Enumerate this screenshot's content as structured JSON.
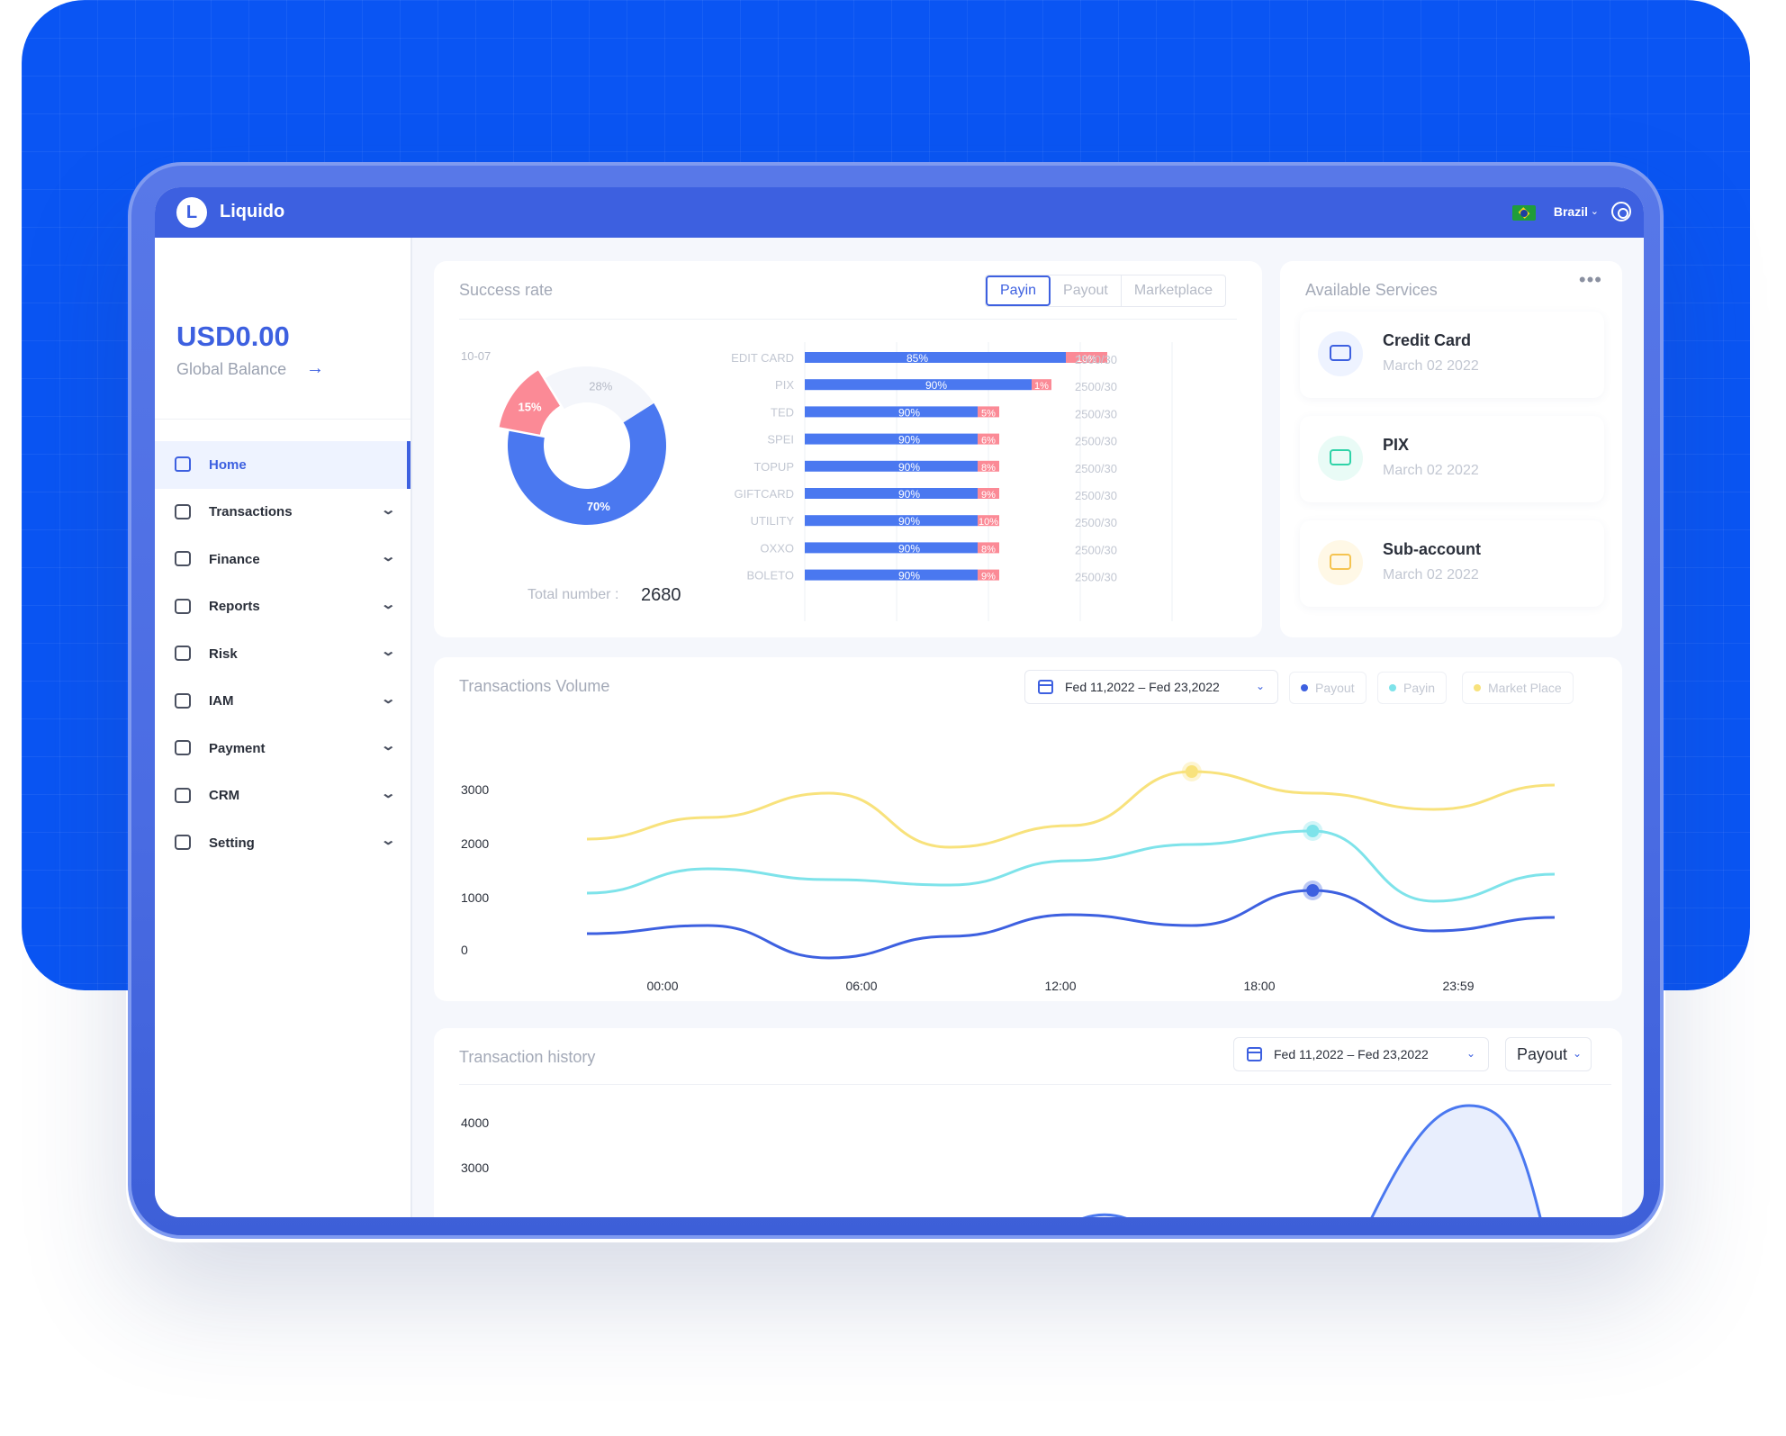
{
  "app": {
    "logo_letter": "L",
    "name": "Liquido"
  },
  "topbar": {
    "country": "Brazil",
    "flag_icon": "brazil-flag-icon",
    "settings_icon": "gear-icon"
  },
  "sidebar": {
    "balance": "USD0.00",
    "balance_label": "Global Balance",
    "balance_arrow": "→",
    "items": [
      {
        "label": "Home",
        "icon": "home-icon",
        "active": true
      },
      {
        "label": "Transactions",
        "icon": "transactions-icon"
      },
      {
        "label": "Finance",
        "icon": "finance-icon"
      },
      {
        "label": "Reports",
        "icon": "reports-icon"
      },
      {
        "label": "Risk",
        "icon": "shield-icon"
      },
      {
        "label": "IAM",
        "icon": "users-icon"
      },
      {
        "label": "Payment",
        "icon": "payment-icon"
      },
      {
        "label": "CRM",
        "icon": "crm-icon"
      },
      {
        "label": "Setting",
        "icon": "setting-icon"
      }
    ],
    "chevron": "⌄"
  },
  "success_rate": {
    "title": "Success rate",
    "tabs": [
      "Payin",
      "Payout",
      "Marketplace"
    ],
    "active_tab": "Payin",
    "date": "10-07",
    "total_label": "Total number  :",
    "total_value": "2680"
  },
  "services": {
    "title": "Available Services",
    "more": "•••",
    "items": [
      {
        "name": "Credit Card",
        "date": "March 02  2022",
        "icon": "credit-card-icon",
        "color": "#3d60e0",
        "bg": "#eef3ff"
      },
      {
        "name": "PIX",
        "date": "March 02  2022",
        "icon": "wallet-icon",
        "color": "#2fd3a8",
        "bg": "#e9fbf6"
      },
      {
        "name": "Sub-account",
        "date": "March 02  2022",
        "icon": "sub-account-icon",
        "color": "#f5c451",
        "bg": "#fff8e6"
      }
    ]
  },
  "volume": {
    "title": "Transactions Volume",
    "date_range": "Fed 11,2022 – Fed 23,2022",
    "chevron": "⌄",
    "legend": [
      {
        "name": "Payout",
        "color": "#3d60e0"
      },
      {
        "name": "Payin",
        "color": "#7ee3ea"
      },
      {
        "name": "Market Place",
        "color": "#f8e27c"
      }
    ]
  },
  "history": {
    "title": "Transaction history",
    "date_range": "Fed 11,2022 – Fed 23,2022",
    "chevron": "⌄",
    "type_select": "Payout"
  },
  "chart_data": [
    {
      "type": "pie",
      "donut": true,
      "slices": [
        {
          "label": "70%",
          "value": 70,
          "color": "#4a78f0"
        },
        {
          "label": "15%",
          "value": 15,
          "color": "#fb8a96"
        },
        {
          "label": "28%",
          "value": 28,
          "color": "#f4f6fb"
        }
      ]
    },
    {
      "type": "bar",
      "stacked": true,
      "orientation": "horizontal",
      "categories": [
        "CREDIT CARD",
        "PIX",
        "TED",
        "SPEI",
        "TOPUP",
        "GIFTCARD",
        "UTILITY",
        "OXXO",
        "BOLETO"
      ],
      "series": [
        {
          "values": [
            85,
            90,
            90,
            90,
            90,
            90,
            90,
            90,
            90
          ],
          "labels": [
            "85%",
            "90%",
            "90%",
            "90%",
            "90%",
            "90%",
            "90%",
            "90%",
            "90%"
          ],
          "color": "#4a78f0"
        },
        {
          "values": [
            10,
            1,
            5,
            6,
            8,
            9,
            10,
            8,
            9
          ],
          "labels": [
            "10%",
            "1%",
            "5%",
            "6%",
            "8%",
            "9%",
            "10%",
            "8%",
            "9%"
          ],
          "color": "#fb8a96"
        }
      ],
      "right_labels": [
        "2500/30",
        "2500/30",
        "2500/30",
        "2500/30",
        "2500/30",
        "2500/30",
        "2500/30",
        "2500/30",
        "2500/30"
      ]
    },
    {
      "type": "line",
      "x_ticks": [
        "00:00",
        "06:00",
        "12:00",
        "18:00",
        "23:59"
      ],
      "y_ticks": [
        "3000",
        "2000",
        "1000",
        "0"
      ],
      "ylim": [
        0,
        3000
      ],
      "x": [
        0,
        1,
        2,
        3,
        4,
        5,
        6,
        7,
        8
      ],
      "series": [
        {
          "name": "Market Place",
          "color": "#f8e27c",
          "values": [
            2100,
            2500,
            2950,
            1950,
            2350,
            3350,
            2950,
            2650,
            3100
          ],
          "highlight_index": 5
        },
        {
          "name": "Payin",
          "color": "#7ee3ea",
          "values": [
            1100,
            1550,
            1350,
            1250,
            1700,
            2000,
            2250,
            950,
            1450
          ],
          "highlight_index": 6
        },
        {
          "name": "Payout",
          "color": "#3d60e0",
          "values": [
            350,
            500,
            -100,
            300,
            700,
            500,
            1150,
            400,
            650
          ],
          "highlight_index": 6
        }
      ]
    },
    {
      "type": "area",
      "y_ticks": [
        "4000",
        "3000"
      ],
      "color": "#4a78f0"
    }
  ]
}
